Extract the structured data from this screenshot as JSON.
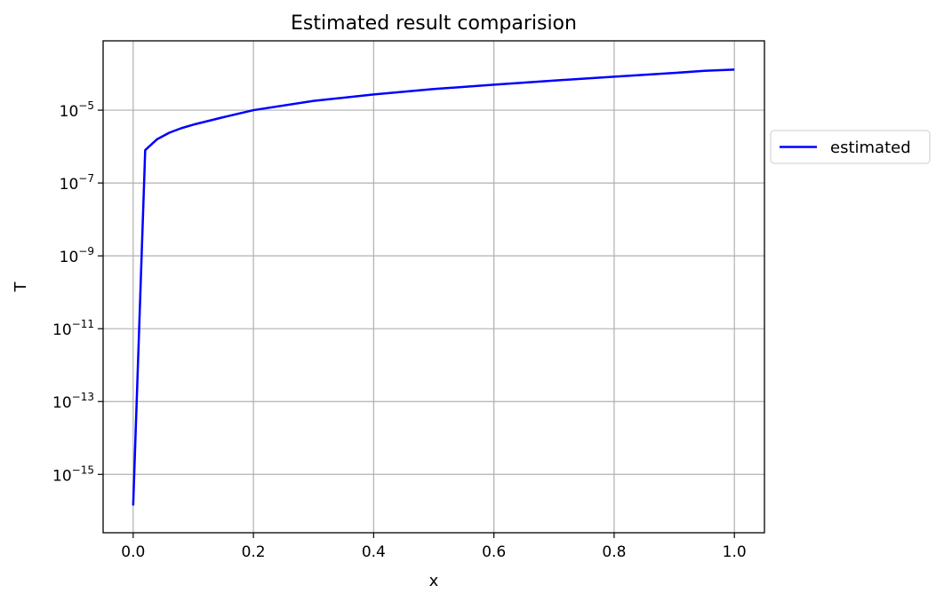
{
  "chart_data": {
    "type": "line",
    "title": "Estimated result comparision",
    "xlabel": "x",
    "ylabel": "T",
    "xlim": [
      -0.05,
      1.05
    ],
    "ylim": [
      2.5e-17,
      0.0008
    ],
    "y_scale": "log",
    "grid": true,
    "legend_position": "outside-right",
    "x_ticks": [
      {
        "value": 0.0,
        "label": "0.0"
      },
      {
        "value": 0.2,
        "label": "0.2"
      },
      {
        "value": 0.4,
        "label": "0.4"
      },
      {
        "value": 0.6,
        "label": "0.6"
      },
      {
        "value": 0.8,
        "label": "0.8"
      },
      {
        "value": 1.0,
        "label": "1.0"
      }
    ],
    "y_ticks": [
      {
        "value": 1e-15,
        "base": "10",
        "exp": "−15"
      },
      {
        "value": 1e-13,
        "base": "10",
        "exp": "−13"
      },
      {
        "value": 1e-11,
        "base": "10",
        "exp": "−11"
      },
      {
        "value": 1e-09,
        "base": "10",
        "exp": "−9"
      },
      {
        "value": 1e-07,
        "base": "10",
        "exp": "−7"
      },
      {
        "value": 1e-05,
        "base": "10",
        "exp": "−5"
      }
    ],
    "series": [
      {
        "name": "estimated",
        "color": "#0000ff",
        "x": [
          0.0,
          0.02,
          0.04,
          0.06,
          0.08,
          0.1,
          0.15,
          0.2,
          0.3,
          0.4,
          0.5,
          0.6,
          0.7,
          0.8,
          0.9,
          0.95,
          1.0
        ],
        "y": [
          1.4e-16,
          8e-07,
          1.6e-06,
          2.4e-06,
          3.2e-06,
          4e-06,
          6.4e-06,
          1e-05,
          1.8e-05,
          2.7e-05,
          3.8e-05,
          5e-05,
          6.5e-05,
          8.3e-05,
          0.000105,
          0.00012,
          0.00013
        ]
      }
    ]
  }
}
